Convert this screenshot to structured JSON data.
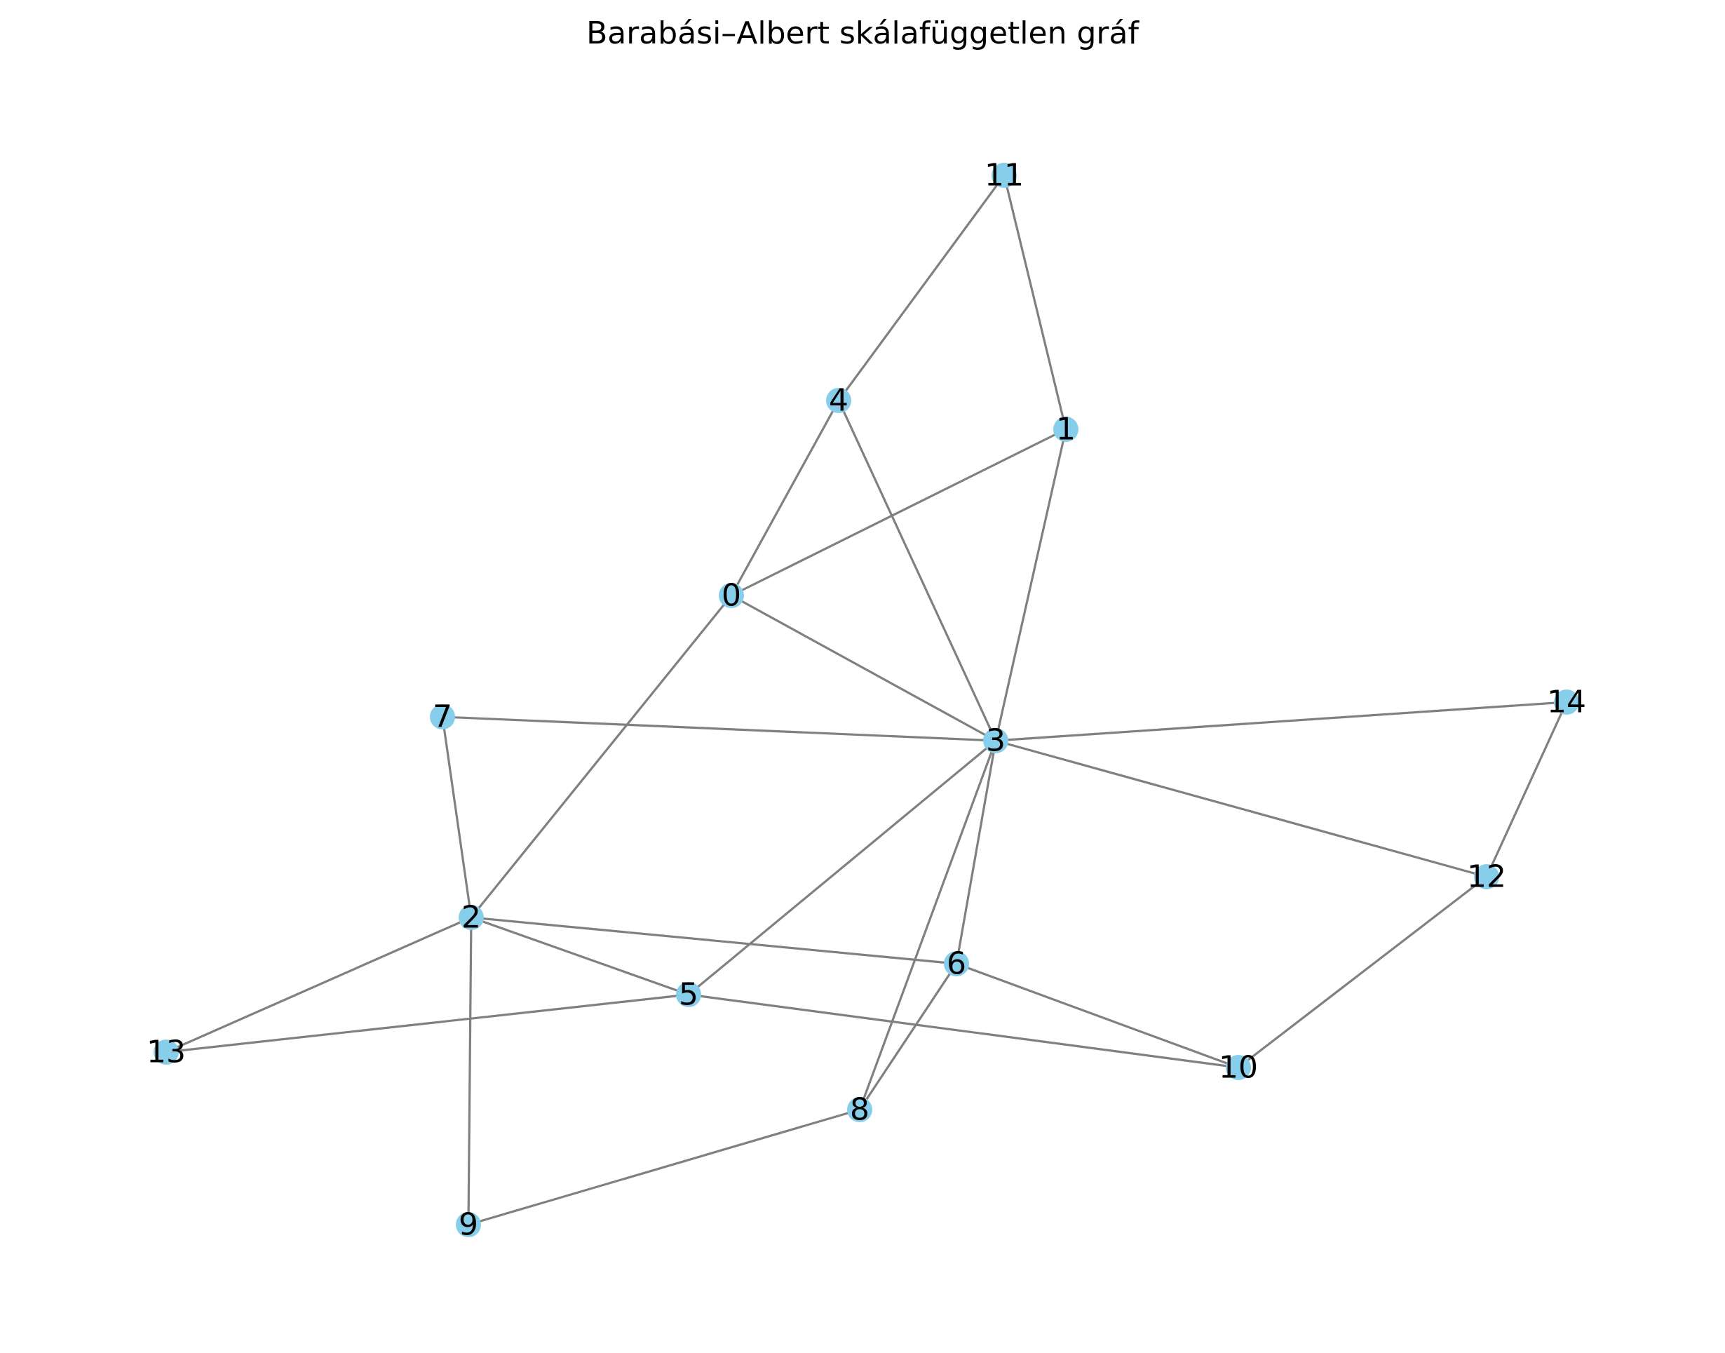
{
  "title": "Barabási–Albert skálafüggetlen gráf",
  "style": {
    "node_color": "#87CEEB",
    "edge_color": "#808080",
    "label_color": "#000000",
    "background": "#FFFFFF"
  },
  "nodes": [
    {
      "id": "0",
      "label": "0"
    },
    {
      "id": "1",
      "label": "1"
    },
    {
      "id": "2",
      "label": "2"
    },
    {
      "id": "3",
      "label": "3"
    },
    {
      "id": "4",
      "label": "4"
    },
    {
      "id": "5",
      "label": "5"
    },
    {
      "id": "6",
      "label": "6"
    },
    {
      "id": "7",
      "label": "7"
    },
    {
      "id": "8",
      "label": "8"
    },
    {
      "id": "9",
      "label": "9"
    },
    {
      "id": "10",
      "label": "10"
    },
    {
      "id": "11",
      "label": "11"
    },
    {
      "id": "12",
      "label": "12"
    },
    {
      "id": "13",
      "label": "13"
    },
    {
      "id": "14",
      "label": "14"
    }
  ],
  "edges": [
    [
      "11",
      "4"
    ],
    [
      "11",
      "1"
    ],
    [
      "4",
      "0"
    ],
    [
      "4",
      "3"
    ],
    [
      "1",
      "0"
    ],
    [
      "1",
      "3"
    ],
    [
      "0",
      "3"
    ],
    [
      "0",
      "2"
    ],
    [
      "7",
      "3"
    ],
    [
      "7",
      "2"
    ],
    [
      "3",
      "14"
    ],
    [
      "3",
      "12"
    ],
    [
      "3",
      "5"
    ],
    [
      "3",
      "6"
    ],
    [
      "3",
      "8"
    ],
    [
      "14",
      "12"
    ],
    [
      "12",
      "10"
    ],
    [
      "2",
      "6"
    ],
    [
      "2",
      "5"
    ],
    [
      "2",
      "13"
    ],
    [
      "2",
      "9"
    ],
    [
      "5",
      "13"
    ],
    [
      "5",
      "10"
    ],
    [
      "6",
      "10"
    ],
    [
      "6",
      "8"
    ],
    [
      "8",
      "9"
    ]
  ]
}
